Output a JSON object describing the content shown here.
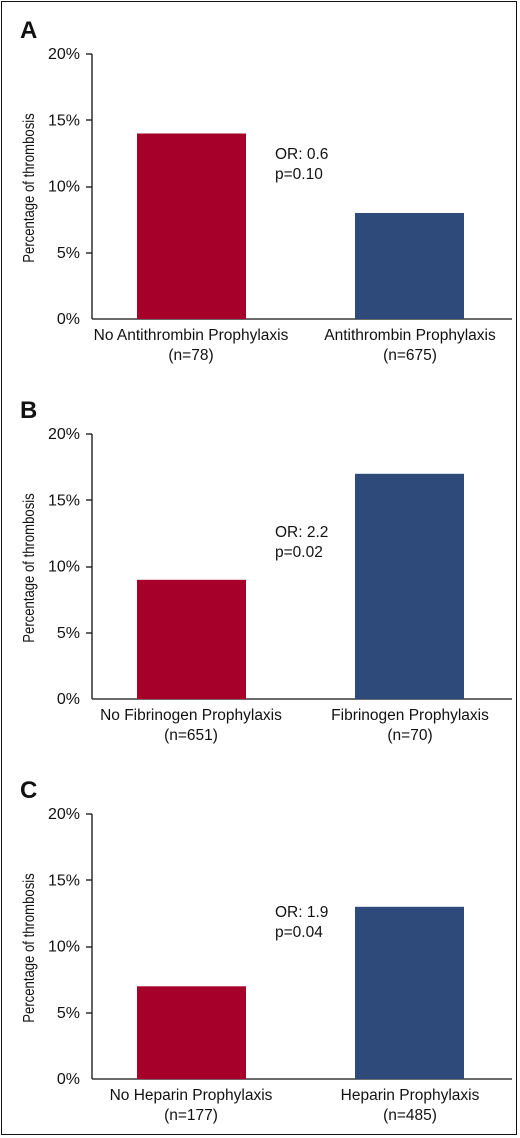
{
  "chart_data": [
    {
      "type": "bar",
      "panel_label": "A",
      "ylabel": "Percentage of thrombosis",
      "ylim": [
        0,
        20
      ],
      "yticks": [
        "0%",
        "5%",
        "10%",
        "15%",
        "20%"
      ],
      "categories": [
        {
          "label": "No Antithrombin Prophylaxis",
          "n": "(n=78)"
        },
        {
          "label": "Antithrombin Prophylaxis",
          "n": "(n=675)"
        }
      ],
      "values": [
        14,
        8
      ],
      "colors": [
        "#a6002a",
        "#2e4a7b"
      ],
      "annotation": {
        "line1": "OR: 0.6",
        "line2": "p=0.10"
      }
    },
    {
      "type": "bar",
      "panel_label": "B",
      "ylabel": "Percentage of thrombosis",
      "ylim": [
        0,
        20
      ],
      "yticks": [
        "0%",
        "5%",
        "10%",
        "15%",
        "20%"
      ],
      "categories": [
        {
          "label": "No Fibrinogen Prophylaxis",
          "n": "(n=651)"
        },
        {
          "label": "Fibrinogen Prophylaxis",
          "n": "(n=70)"
        }
      ],
      "values": [
        9,
        17
      ],
      "colors": [
        "#a6002a",
        "#2e4a7b"
      ],
      "annotation": {
        "line1": "OR: 2.2",
        "line2": "p=0.02"
      }
    },
    {
      "type": "bar",
      "panel_label": "C",
      "ylabel": "Percentage of thrombosis",
      "ylim": [
        0,
        20
      ],
      "yticks": [
        "0%",
        "5%",
        "10%",
        "15%",
        "20%"
      ],
      "categories": [
        {
          "label": "No Heparin Prophylaxis",
          "n": "(n=177)"
        },
        {
          "label": "Heparin Prophylaxis",
          "n": "(n=485)"
        }
      ],
      "values": [
        7,
        13
      ],
      "colors": [
        "#a6002a",
        "#2e4a7b"
      ],
      "annotation": {
        "line1": "OR: 1.9",
        "line2": "p=0.04"
      }
    }
  ]
}
